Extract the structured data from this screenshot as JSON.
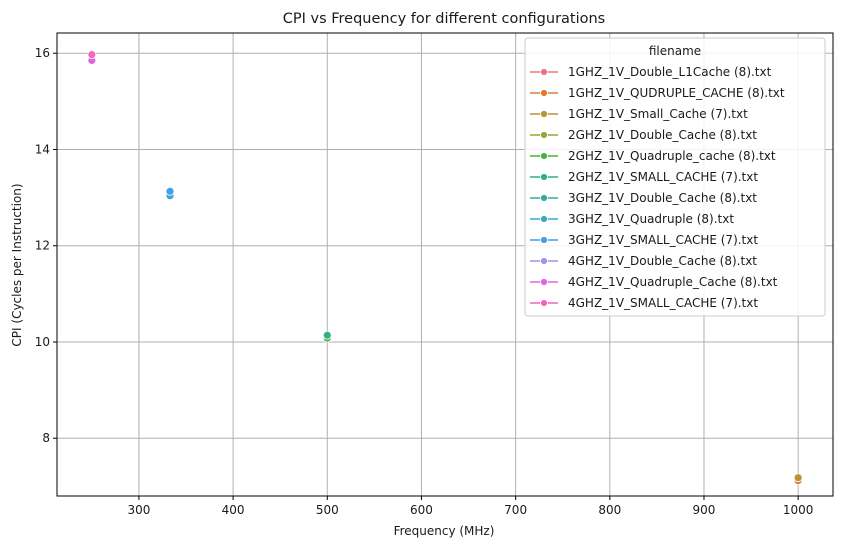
{
  "chart_data": {
    "type": "line",
    "title": "CPI vs Frequency for different configurations",
    "xlabel": "Frequency (MHz)",
    "ylabel": "CPI (Cycles per Instruction)",
    "xlim": [
      213,
      1037
    ],
    "ylim": [
      6.8,
      16.42
    ],
    "xticks": [
      300,
      400,
      500,
      600,
      700,
      800,
      900,
      1000
    ],
    "yticks": [
      8,
      10,
      12,
      14,
      16
    ],
    "grid": true,
    "marker": "circle",
    "legend": {
      "title": "filename",
      "placement": "upper right"
    },
    "series": [
      {
        "name": "1GHZ_1V_Double_L1Cache (8).txt",
        "color": "#f0708a",
        "points": [
          [
            1000,
            7.15
          ]
        ]
      },
      {
        "name": "1GHZ_1V_QUDRUPLE_CACHE (8).txt",
        "color": "#dd7b30",
        "points": [
          [
            1000,
            7.12
          ]
        ]
      },
      {
        "name": "1GHZ_1V_Small_Cache (7).txt",
        "color": "#b89432",
        "points": [
          [
            1000,
            7.18
          ]
        ]
      },
      {
        "name": "2GHZ_1V_Double_Cache (8).txt",
        "color": "#92a832",
        "points": [
          [
            500,
            10.1
          ]
        ]
      },
      {
        "name": "2GHZ_1V_Quadruple_cache (8).txt",
        "color": "#4bb13f",
        "points": [
          [
            500,
            10.08
          ]
        ]
      },
      {
        "name": "2GHZ_1V_SMALL_CACHE (7).txt",
        "color": "#33af83",
        "points": [
          [
            500,
            10.14
          ]
        ]
      },
      {
        "name": "3GHZ_1V_Double_Cache (8).txt",
        "color": "#36ab9f",
        "points": [
          [
            333,
            13.07
          ]
        ]
      },
      {
        "name": "3GHZ_1V_Quadruple (8).txt",
        "color": "#38a8be",
        "points": [
          [
            333,
            13.04
          ]
        ]
      },
      {
        "name": "3GHZ_1V_SMALL_CACHE (7).txt",
        "color": "#40a1e6",
        "points": [
          [
            333,
            13.13
          ]
        ]
      },
      {
        "name": "4GHZ_1V_Double_Cache (8).txt",
        "color": "#a48ef0",
        "points": [
          [
            250,
            15.88
          ]
        ]
      },
      {
        "name": "4GHZ_1V_Quadruple_Cache (8).txt",
        "color": "#dd67e2",
        "points": [
          [
            250,
            15.85
          ]
        ]
      },
      {
        "name": "4GHZ_1V_SMALL_CACHE (7).txt",
        "color": "#f167c2",
        "points": [
          [
            250,
            15.97
          ]
        ]
      }
    ]
  }
}
